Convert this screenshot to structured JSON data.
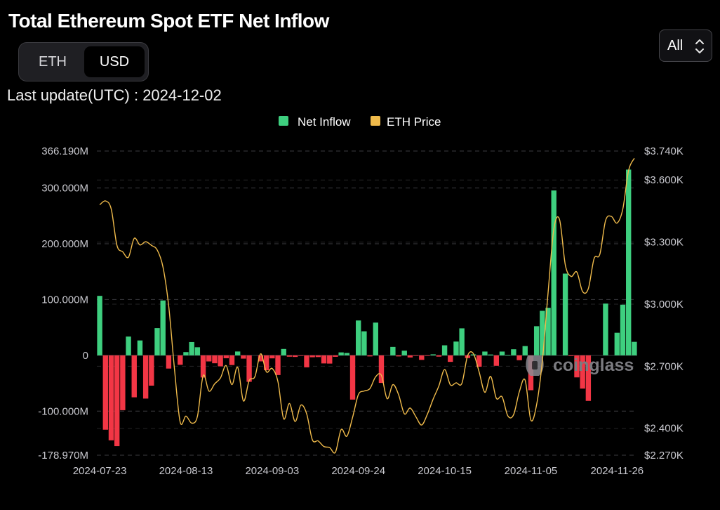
{
  "header": {
    "title": "Total Ethereum Spot ETF Net Inflow",
    "unit_toggle": [
      "ETH",
      "USD"
    ],
    "unit_selected": "USD",
    "range_select": "All",
    "last_update_label": "Last update(UTC) : ",
    "last_update_value": "2024-12-02"
  },
  "watermark": "coinglass",
  "colors": {
    "positive": "#3ecf7f",
    "negative": "#f23645",
    "price": "#f0bb4b",
    "grid": "#3c3c40"
  },
  "chart_data": {
    "type": "bar",
    "title": "Total Ethereum Spot ETF Net Inflow",
    "legend": [
      "Net Inflow",
      "ETH Price"
    ],
    "legend_position": "top-center",
    "x_tick_labels": [
      "2024-07-23",
      "2024-08-13",
      "2024-09-03",
      "2024-09-24",
      "2024-10-15",
      "2024-11-05",
      "2024-11-26"
    ],
    "x_tick_index": [
      0,
      15,
      30,
      45,
      60,
      75,
      90
    ],
    "y_left": {
      "ticks": [
        366.19,
        300,
        200,
        100,
        0,
        -100,
        -178.97
      ],
      "labels": [
        "366.190M",
        "300.000M",
        "200.000M",
        "100.000M",
        "0",
        "-100.000M",
        "-178.970M"
      ],
      "range": [
        -178.97,
        366.19
      ]
    },
    "y_right": {
      "ticks": [
        3740,
        3600,
        3300,
        3000,
        2700,
        2400,
        2270
      ],
      "labels": [
        "$3.740K",
        "$3.600K",
        "$3.300K",
        "$3.000K",
        "$2.700K",
        "$2.400K",
        "$2.270K"
      ],
      "range": [
        2270,
        3740
      ]
    },
    "series": [
      {
        "name": "Net Inflow",
        "type": "bar",
        "unit": "USD millions",
        "values": [
          106.6,
          -133.3,
          -152.3,
          -162.7,
          -98.3,
          33.7,
          -75.2,
          26.7,
          -77.5,
          -54.3,
          48.8,
          98.4,
          -23.7,
          0,
          -16.9,
          5.8,
          23.8,
          14.5,
          -39.7,
          -10.9,
          -14.2,
          -19.7,
          -5.2,
          -17.4,
          6.9,
          -5.9,
          -47.4,
          0,
          -10.8,
          -26.7,
          -5.4,
          -35.3,
          11.4,
          -2.4,
          -2.9,
          -0.6,
          -21.5,
          -3.4,
          -3.1,
          -14.5,
          -14.8,
          -2.6,
          5.3,
          4.3,
          -79.3,
          62.5,
          43.1,
          -1.9,
          58.7,
          -49.4,
          0,
          15.1,
          -1.9,
          8.4,
          -3.8,
          -1.0,
          -8.1,
          -0.4,
          1.8,
          -2.3,
          18.0,
          -11.7,
          24.7,
          48.4,
          -4.9,
          1.7,
          -20.4,
          6.8,
          1.5,
          -18.8,
          6.8,
          0.6,
          10.9,
          -8.7,
          16.6,
          -62.5,
          52.2,
          79.8,
          85.2,
          295.5,
          0,
          146.5,
          -1.2,
          -39.5,
          -59.6,
          -81.7,
          0,
          0,
          92.8,
          0,
          40.5,
          90.8,
          332.9,
          24.2
        ]
      },
      {
        "name": "ETH Price",
        "type": "line",
        "unit": "USD",
        "values": [
          3480,
          3499,
          3460,
          3284,
          3253,
          3227,
          3318,
          3286,
          3302,
          3284,
          3262,
          3180,
          2991,
          2688,
          2430,
          2459,
          2425,
          2458,
          2655,
          2580,
          2615,
          2643,
          2703,
          2611,
          2695,
          2532,
          2631,
          2650,
          2760,
          2673,
          2689,
          2626,
          2446,
          2520,
          2433,
          2512,
          2470,
          2344,
          2339,
          2312,
          2307,
          2284,
          2394,
          2362,
          2454,
          2563,
          2580,
          2592,
          2649,
          2656,
          2543,
          2611,
          2562,
          2470,
          2498,
          2456,
          2416,
          2468,
          2541,
          2605,
          2684,
          2610,
          2620,
          2617,
          2751,
          2761,
          2673,
          2574,
          2651,
          2545,
          2552,
          2460,
          2466,
          2577,
          2633,
          2440,
          2514,
          2726,
          3056,
          3363,
          3408,
          3189,
          3134,
          3155,
          3061,
          3075,
          3220,
          3241,
          3404,
          3424,
          3392,
          3460,
          3646,
          3705
        ]
      }
    ]
  }
}
